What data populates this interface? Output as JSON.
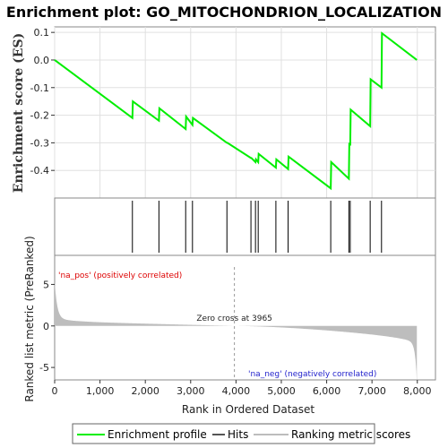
{
  "chart_data": {
    "type": "line",
    "title": "Enrichment plot: GO_MITOCHONDRION_LOCALIZATION",
    "es_panel": {
      "ylabel": "Enrichment score (ES)",
      "ylim": [
        -0.5,
        0.12
      ],
      "yticks": [
        0.1,
        0.0,
        -0.1,
        -0.2,
        -0.3,
        -0.4
      ],
      "ytick_labels": [
        "0.1",
        "0.0",
        "-0.1",
        "-0.2",
        "-0.3",
        "-0.4"
      ],
      "series": [
        {
          "name": "Enrichment profile",
          "color": "#00ee00",
          "x": [
            0,
            1715,
            1725,
            2300,
            2310,
            2890,
            2900,
            3040,
            3050,
            3800,
            3810,
            4330,
            4340,
            4430,
            4440,
            4490,
            4500,
            4880,
            4890,
            5150,
            5160,
            6090,
            6100,
            6490,
            6500,
            6520,
            6530,
            6960,
            6970,
            7210,
            7220,
            7990
          ],
          "y": [
            0.0,
            -0.21,
            -0.15,
            -0.22,
            -0.175,
            -0.25,
            -0.205,
            -0.235,
            -0.21,
            -0.3,
            -0.3,
            -0.355,
            -0.355,
            -0.37,
            -0.36,
            -0.37,
            -0.34,
            -0.39,
            -0.36,
            -0.395,
            -0.35,
            -0.465,
            -0.37,
            -0.43,
            -0.3,
            -0.31,
            -0.18,
            -0.24,
            -0.07,
            -0.1,
            0.097,
            0.0
          ]
        }
      ]
    },
    "hits": [
      1715,
      2300,
      2890,
      3040,
      3800,
      4330,
      4430,
      4490,
      4880,
      5150,
      6090,
      6490,
      6520,
      6960,
      7210
    ],
    "ranked_panel": {
      "ylabel": "Ranked list metric (PreRanked)",
      "ylim": [
        -6.5,
        8.5
      ],
      "yticks": [
        5,
        0,
        -5
      ],
      "ytick_labels": [
        "5",
        "0",
        "-5"
      ],
      "zero_cross_label": "Zero cross at 3965",
      "zero_cross": 3965,
      "pos_label": "'na_pos' (positively correlated)",
      "neg_label": "'na_neg' (negatively correlated)"
    },
    "xlabel": "Rank in Ordered Dataset",
    "xlim": [
      0,
      8400
    ],
    "xticks": [
      0,
      1000,
      2000,
      3000,
      4000,
      5000,
      6000,
      7000,
      8000
    ],
    "xtick_labels": [
      "0",
      "1,000",
      "2,000",
      "3,000",
      "4,000",
      "5,000",
      "6,000",
      "7,000",
      "8,000"
    ],
    "n_genes": 7990,
    "color_bar": [
      {
        "from": 0,
        "to": 1300,
        "color": "#f0555a"
      },
      {
        "from": 1300,
        "to": 2150,
        "color": "#f07a80"
      },
      {
        "from": 2150,
        "to": 3000,
        "color": "#f0a0a0"
      },
      {
        "from": 3000,
        "to": 3965,
        "color": "#f8c4e0"
      },
      {
        "from": 3965,
        "to": 5000,
        "color": "#d8d8f8"
      },
      {
        "from": 5000,
        "to": 5900,
        "color": "#c4c4f4"
      },
      {
        "from": 5900,
        "to": 6450,
        "color": "#8c80ee"
      },
      {
        "from": 6450,
        "to": 7650,
        "color": "#6a50e8"
      },
      {
        "from": 7650,
        "to": 7990,
        "color": "#3200cc"
      }
    ],
    "legend": [
      "Enrichment profile",
      "Hits",
      "Ranking metric scores"
    ],
    "legend_placement": "bottom"
  },
  "colors": {
    "profile": "#00ee00",
    "hits": "#000000",
    "metric": "#bdbdbd",
    "pos_label": "#dd0000",
    "neg_label": "#2222cc"
  }
}
